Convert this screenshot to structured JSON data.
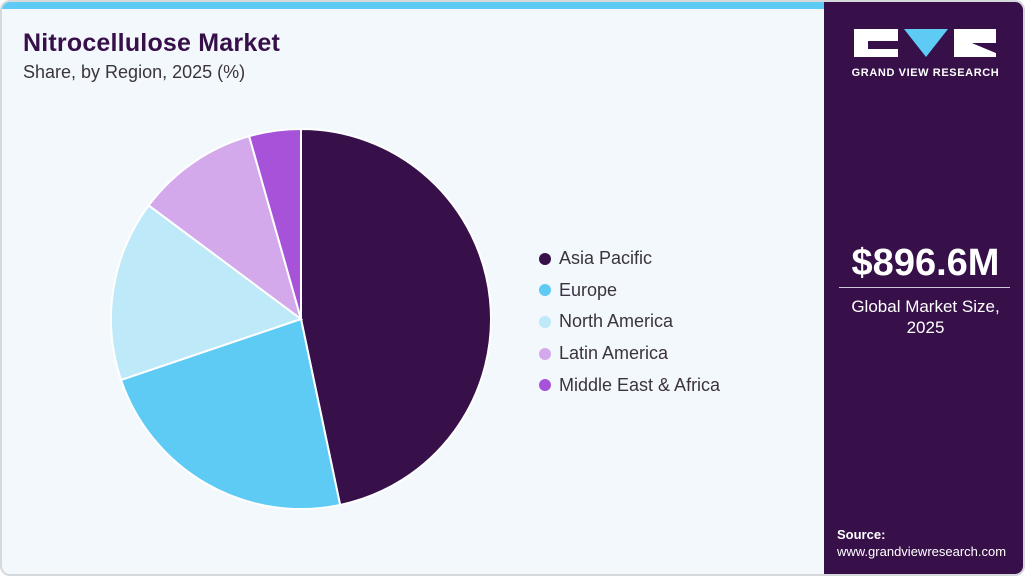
{
  "header": {
    "title": "Nitrocellulose Market",
    "subtitle": "Share, by Region, 2025 (%)"
  },
  "colors": {
    "top_bar": "#5ecbf5",
    "panel": "#37104a",
    "background": "#f3f8fc"
  },
  "legend": {
    "items": [
      {
        "label": "Asia Pacific",
        "color": "#37104a"
      },
      {
        "label": "Europe",
        "color": "#5ecbf5"
      },
      {
        "label": "North America",
        "color": "#bde9f9"
      },
      {
        "label": "Latin America",
        "color": "#d4a9ec"
      },
      {
        "label": "Middle East & Africa",
        "color": "#a653d9"
      }
    ]
  },
  "side_panel": {
    "logo_text": "GRAND VIEW RESEARCH",
    "market_size": "$896.6M",
    "market_size_label": "Global Market Size, 2025",
    "source_label": "Source:",
    "source_url": "www.grandviewresearch.com"
  },
  "chart_data": {
    "type": "pie",
    "title": "Nitrocellulose Market",
    "subtitle": "Share, by Region, 2025 (%)",
    "categories": [
      "Asia Pacific",
      "Europe",
      "North America",
      "Latin America",
      "Middle East & Africa"
    ],
    "values": [
      46.7,
      23.1,
      15.4,
      10.4,
      4.4
    ],
    "colors": [
      "#37104a",
      "#5ecbf5",
      "#bde9f9",
      "#d4a9ec",
      "#a653d9"
    ],
    "start_angle": "12 o'clock, clockwise",
    "legend_position": "right",
    "annotations": []
  }
}
